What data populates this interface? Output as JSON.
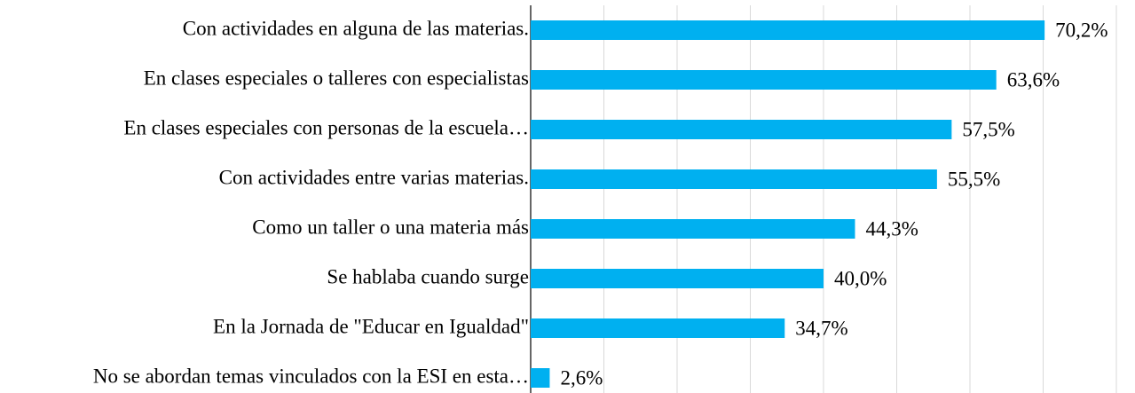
{
  "chart_data": {
    "type": "bar",
    "orientation": "horizontal",
    "categories": [
      "Con actividades en alguna de las materias.",
      "En clases especiales o talleres con especialistas",
      "En clases especiales con personas de la escuela…",
      "Con actividades entre varias materias.",
      "Como un taller o una materia más",
      "Se hablaba cuando surge",
      "En la Jornada de \"Educar en Igualdad\"",
      "No se abordan temas vinculados con la ESI en esta…"
    ],
    "values": [
      70.2,
      63.6,
      57.5,
      55.5,
      44.3,
      40.0,
      34.7,
      2.6
    ],
    "value_labels": [
      "70,2%",
      "63,6%",
      "57,5%",
      "55,5%",
      "44,3%",
      "40,0%",
      "34,7%",
      "2,6%"
    ],
    "color": "#00b0f0",
    "xlim": [
      0,
      80
    ],
    "xticks": [
      0,
      10,
      20,
      30,
      40,
      50,
      60,
      70,
      80
    ],
    "grid": true
  }
}
